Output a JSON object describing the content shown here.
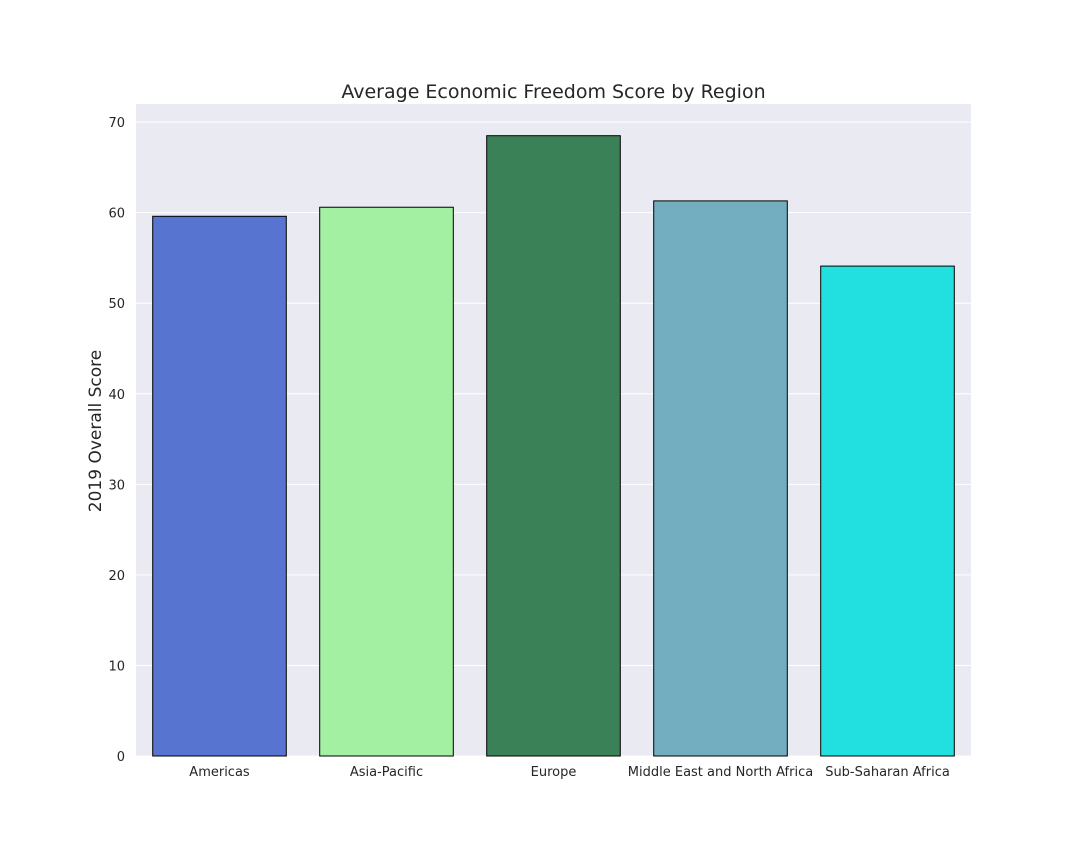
{
  "chart_data": {
    "type": "bar",
    "title": "Average Economic Freedom Score by Region",
    "xlabel": "",
    "ylabel": "2019 Overall Score",
    "categories": [
      "Americas",
      "Asia-Pacific",
      "Europe",
      "Middle East and North Africa",
      "Sub-Saharan Africa"
    ],
    "values": [
      59.6,
      60.6,
      68.5,
      61.3,
      54.1
    ],
    "colors": [
      "#5674d0",
      "#a3f0a3",
      "#3b8158",
      "#73adc0",
      "#22e0e0"
    ],
    "ylim": [
      0,
      72
    ],
    "yticks": [
      0,
      10,
      20,
      30,
      40,
      50,
      60,
      70
    ],
    "grid": true,
    "legend": "none",
    "style": {
      "plot_background": "#eaeaf2",
      "grid_color": "#ffffff",
      "bar_edge_color": "#000000"
    }
  }
}
